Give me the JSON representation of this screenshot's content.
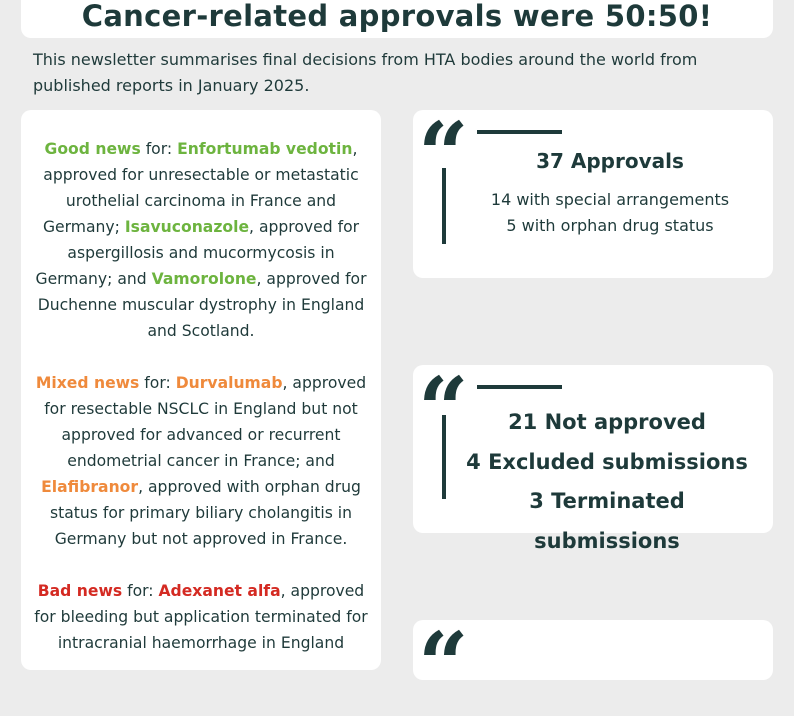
{
  "title": "Cancer-related approvals were 50:50!",
  "intro": "This newsletter summarises final decisions from HTA bodies around the world from published reports in January 2025.",
  "news": {
    "good": {
      "label": "Good news",
      "for": " for: ",
      "drug1": "Enfortumab vedotin",
      "text1": ", approved for unresectable or metastatic urothelial carcinoma in France and Germany; ",
      "drug2": "Isavuconazole",
      "text2": ", approved for aspergillosis and mucormycosis in Germany; and ",
      "drug3": "Vamorolone",
      "text3": ", approved for Duchenne muscular dystrophy in England and Scotland."
    },
    "mixed": {
      "label": "Mixed news",
      "for": " for: ",
      "drug1": "Durvalumab",
      "text1": ", approved for resectable NSCLC in England but not approved for advanced or recurrent endometrial cancer in France; and ",
      "drug2": "Elafibranor",
      "text2": ", approved with orphan drug status for primary biliary cholangitis in Germany but not approved in France."
    },
    "bad": {
      "label": "Bad news",
      "for": " for: ",
      "drug1": "Adexanet alfa",
      "text1": ", approved for bleeding but application terminated for intracranial haemorrhage in England"
    }
  },
  "stats": {
    "approvals": {
      "headline": "37 Approvals",
      "line1": "14 with special arrangements",
      "line2": "5 with orphan drug status"
    },
    "not_approved": {
      "line1": "21 Not approved",
      "line2": "4 Excluded submissions",
      "line3": "3 Terminated submissions"
    }
  },
  "colors": {
    "dark_teal": "#1e3a3a",
    "good": "#6db43f",
    "mixed": "#ef8a3c",
    "bad": "#d42a22"
  }
}
